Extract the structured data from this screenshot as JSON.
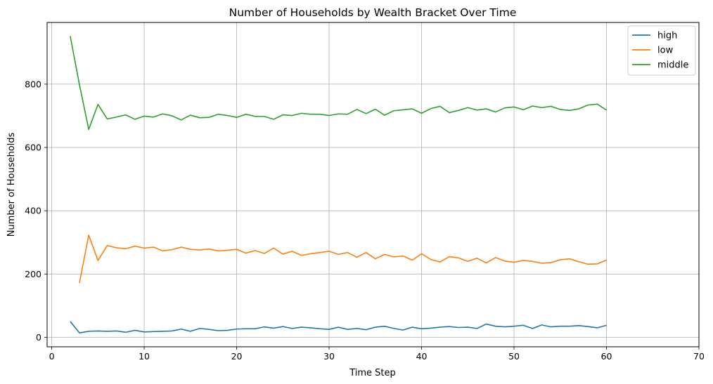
{
  "chart_data": {
    "type": "line",
    "title": "Number of Households by Wealth Bracket Over Time",
    "xlabel": "Time Step",
    "ylabel": "Number of Households",
    "xlim": [
      -0.5,
      70
    ],
    "ylim": [
      -30,
      995
    ],
    "xticks": [
      0,
      10,
      20,
      30,
      40,
      50,
      60,
      70
    ],
    "yticks": [
      0,
      200,
      400,
      600,
      800
    ],
    "grid": true,
    "legend_position": "top-right",
    "series": [
      {
        "name": "high",
        "color": "#1f77b4",
        "x": [
          2,
          3,
          4,
          5,
          6,
          7,
          8,
          9,
          10,
          11,
          12,
          13,
          14,
          15,
          16,
          17,
          18,
          19,
          20,
          21,
          22,
          23,
          24,
          25,
          26,
          27,
          28,
          29,
          30,
          31,
          32,
          33,
          34,
          35,
          36,
          37,
          38,
          39,
          40,
          41,
          42,
          43,
          44,
          45,
          46,
          47,
          48,
          49,
          50,
          51,
          52,
          53,
          54,
          55,
          56,
          57,
          58,
          59,
          60
        ],
        "values": [
          50,
          14,
          19,
          20,
          19,
          20,
          16,
          22,
          17,
          18,
          19,
          20,
          26,
          19,
          28,
          25,
          21,
          22,
          26,
          27,
          27,
          33,
          29,
          34,
          28,
          32,
          30,
          27,
          25,
          32,
          25,
          28,
          24,
          32,
          35,
          28,
          23,
          32,
          27,
          29,
          32,
          34,
          31,
          32,
          28,
          42,
          35,
          33,
          35,
          38,
          28,
          39,
          33,
          35,
          35,
          37,
          34,
          30,
          38
        ]
      },
      {
        "name": "low",
        "color": "#ff7f0e",
        "x": [
          3,
          4,
          5,
          6,
          7,
          8,
          9,
          10,
          11,
          12,
          13,
          14,
          15,
          16,
          17,
          18,
          19,
          20,
          21,
          22,
          23,
          24,
          25,
          26,
          27,
          28,
          29,
          30,
          31,
          32,
          33,
          34,
          35,
          36,
          37,
          38,
          39,
          40,
          41,
          42,
          43,
          44,
          45,
          46,
          47,
          48,
          49,
          50,
          51,
          52,
          53,
          54,
          55,
          56,
          57,
          58,
          59,
          60
        ],
        "values": [
          172,
          323,
          243,
          290,
          283,
          280,
          288,
          282,
          285,
          273,
          277,
          285,
          278,
          276,
          279,
          273,
          275,
          278,
          266,
          274,
          265,
          282,
          263,
          272,
          259,
          264,
          268,
          272,
          262,
          268,
          253,
          268,
          248,
          262,
          254,
          257,
          244,
          264,
          246,
          238,
          255,
          251,
          240,
          250,
          235,
          252,
          241,
          237,
          243,
          240,
          234,
          236,
          245,
          248,
          239,
          231,
          232,
          244
        ]
      },
      {
        "name": "middle",
        "color": "#2ca02c",
        "x": [
          2,
          3,
          4,
          5,
          6,
          7,
          8,
          9,
          10,
          11,
          12,
          13,
          14,
          15,
          16,
          17,
          18,
          19,
          20,
          21,
          22,
          23,
          24,
          25,
          26,
          27,
          28,
          29,
          30,
          31,
          32,
          33,
          34,
          35,
          36,
          37,
          38,
          39,
          40,
          41,
          42,
          43,
          44,
          45,
          46,
          47,
          48,
          49,
          50,
          51,
          52,
          53,
          54,
          55,
          56,
          57,
          58,
          59,
          60
        ],
        "values": [
          952,
          798,
          657,
          736,
          690,
          696,
          703,
          689,
          699,
          696,
          706,
          700,
          687,
          702,
          694,
          695,
          705,
          701,
          695,
          705,
          698,
          698,
          689,
          703,
          701,
          708,
          705,
          705,
          701,
          706,
          705,
          720,
          707,
          721,
          702,
          716,
          719,
          722,
          708,
          723,
          730,
          710,
          717,
          726,
          718,
          722,
          712,
          725,
          728,
          719,
          731,
          726,
          730,
          720,
          717,
          722,
          734,
          737,
          718
        ]
      }
    ]
  }
}
